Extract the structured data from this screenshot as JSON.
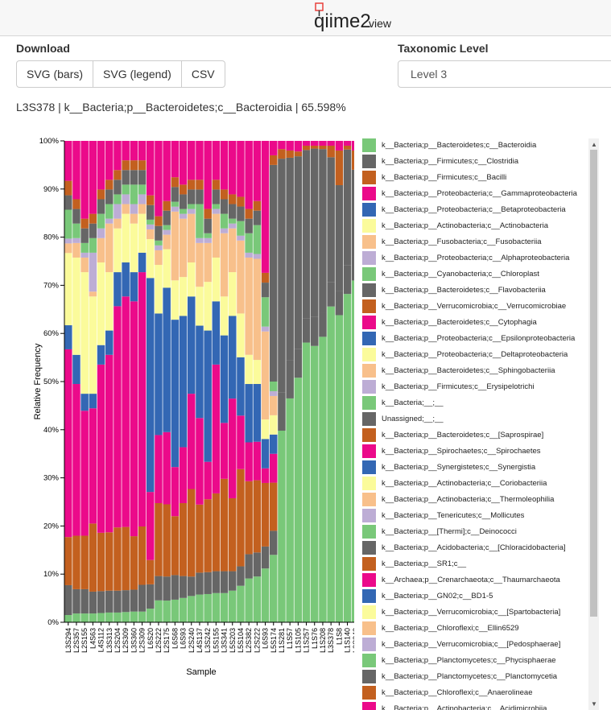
{
  "header": {
    "logo_text": "qiime2view",
    "logo_main": "qiime2",
    "logo_sub": "view"
  },
  "download": {
    "title": "Download",
    "buttons": [
      "SVG (bars)",
      "SVG (legend)",
      "CSV"
    ]
  },
  "taxonomic": {
    "title": "Taxonomic Level",
    "selected": "Level 3"
  },
  "hover_info": "L3S378 | k__Bacteria;p__Bacteroidetes;c__Bacteroidia | 65.598%",
  "colors": {
    "accent_red": "#e8413c"
  },
  "chart_data": {
    "type": "bar",
    "stacked": true,
    "orientation": "vertical",
    "xlabel": "Sample",
    "ylabel": "Relative Frequency",
    "ylim": [
      0,
      100
    ],
    "yticks": [
      "0%",
      "10%",
      "20%",
      "30%",
      "40%",
      "50%",
      "60%",
      "70%",
      "80%",
      "90%",
      "100%"
    ],
    "categories": [
      "L3S294",
      "L2S357",
      "L2S155",
      "L4S63",
      "L4S112",
      "L3S313",
      "L2S204",
      "L2S309",
      "L3S360",
      "L2S309",
      "L6S20",
      "L2S222",
      "L2S175",
      "L6S68",
      "L6S93",
      "L2S240",
      "L4S137",
      "L3S242",
      "L5S155",
      "L3S341",
      "L5S203",
      "L5S104",
      "L2S382",
      "L2S222",
      "L6S93",
      "L5S174",
      "L1S281",
      "L1S57",
      "L1S105",
      "L1S257",
      "L1S76",
      "L1S208",
      "L3S378",
      "L1S8",
      "L1S140",
      "L3S242"
    ],
    "series": [
      {
        "name": "k__Bacteria;p__Bacteroidetes;c__Bacteroidia",
        "color": "#79c879",
        "values": [
          1.5,
          1.8,
          1.8,
          1.8,
          1.9,
          2.0,
          2.0,
          2.1,
          2.2,
          2.2,
          2.8,
          4.5,
          4.5,
          4.6,
          5.0,
          5.4,
          5.7,
          5.8,
          6.0,
          6.0,
          6.5,
          7.5,
          9.0,
          9.5,
          11.0,
          14.0,
          39.8,
          46.5,
          50.8,
          58.1,
          57.4,
          59.3,
          65.6,
          63.8,
          68.2,
          71.0
        ]
      },
      {
        "name": "k__Bacteria;p__Firmicutes;c__Clostridia",
        "color": "#666666",
        "values": [
          6.2,
          5.0,
          5.0,
          4.5,
          4.5,
          4.5,
          4.5,
          4.5,
          4.5,
          5.5,
          5.0,
          5.0,
          5.0,
          5.0,
          4.5,
          4.0,
          4.5,
          4.5,
          4.5,
          4.5,
          4.0,
          4.0,
          5.0,
          5.0,
          4.5,
          5.0,
          8.0,
          8.0,
          6.0,
          5.0,
          6.0,
          5.0,
          5.0,
          5.0,
          6.0,
          5.0
        ]
      },
      {
        "name": "k__Bacteria;p__Firmicutes;c__Bacilli",
        "color": "#c3601f",
        "values": [
          10.0,
          11.0,
          11.0,
          14.0,
          12.0,
          12.0,
          13.0,
          13.0,
          11.0,
          12.0,
          5.0,
          15.0,
          15.0,
          12.0,
          15.0,
          18.0,
          14.0,
          15.0,
          16.0,
          19.0,
          15.0,
          20.0,
          15.0,
          15.0,
          13.0,
          10.0,
          0,
          0,
          0,
          0,
          0,
          0,
          0,
          0,
          0,
          0
        ]
      },
      {
        "name": "k__Bacteria;p__Proteobacteria;c__Gammaproteobacteria",
        "color": "#eb0a8a",
        "values": [
          39.0,
          31.2,
          25.7,
          23.7,
          34.6,
          36.5,
          45.5,
          47.4,
          48.3,
          52.3,
          14.0,
          14.0,
          15.0,
          10.0,
          11.5,
          19.6,
          17.8,
          7.7,
          26.5,
          11.5,
          20.5,
          11.0,
          8.0,
          8.0,
          3.0,
          6.0,
          0,
          0,
          0,
          0,
          0,
          0,
          0,
          0,
          0,
          0
        ]
      },
      {
        "name": "k__Bacteria;p__Proteobacteria;c__Betaproteobacteria",
        "color": "#3367b4",
        "values": [
          5.0,
          6.0,
          3.5,
          3.0,
          4.0,
          5.0,
          7.0,
          7.0,
          6.0,
          4.0,
          44.0,
          25.0,
          30.0,
          30.0,
          27.0,
          20.0,
          19.0,
          27.0,
          13.0,
          18.0,
          17.0,
          12.0,
          12.0,
          12.0,
          6.0,
          4.0,
          0,
          0,
          0,
          0,
          0,
          0,
          0,
          0,
          0,
          0
        ]
      },
      {
        "name": "k__Bacteria;p__Actinobacteria;c__Actinobacteria",
        "color": "#fbfb9b",
        "values": [
          15.0,
          20.0,
          25.0,
          20.0,
          17.0,
          12.0,
          9.0,
          10.0,
          10.0,
          8.0,
          8.0,
          10.0,
          8.0,
          8.0,
          8.0,
          7.0,
          8.0,
          10.0,
          9.0,
          8.0,
          9.0,
          9.0,
          6.0,
          5.0,
          4.0,
          4.0,
          0,
          0,
          0,
          0,
          0,
          0,
          0,
          0,
          0,
          0
        ]
      },
      {
        "name": "k__Bacteria;p__Fusobacteria;c__Fusobacteriia",
        "color": "#f8c08b",
        "values": [
          2.0,
          3.0,
          3.0,
          1.0,
          5.0,
          10.0,
          2.0,
          2.0,
          2.0,
          2.0,
          2.0,
          3.0,
          3.0,
          14.0,
          12.0,
          10.0,
          9.0,
          8.0,
          9.0,
          13.0,
          9.0,
          15.0,
          20.0,
          21.0,
          18.0,
          4.0,
          0,
          0,
          0,
          0,
          0,
          0,
          0,
          0,
          0,
          0
        ]
      },
      {
        "name": "k__Bacteria;p__Proteobacteria;c__Alphaproteobacteria",
        "color": "#bdadd5",
        "values": [
          1.0,
          1.0,
          1.0,
          8.0,
          2.0,
          1.0,
          3.0,
          2.0,
          2.0,
          2.0,
          1.0,
          1.0,
          1.0,
          1.0,
          1.0,
          1.0,
          1.0,
          1.0,
          1.0,
          1.0,
          1.0,
          1.0,
          1.0,
          1.0,
          1.0,
          1.0,
          0,
          0,
          0,
          0,
          0,
          0,
          0,
          0,
          0,
          0
        ]
      },
      {
        "name": "k__Bacteria;p__Cyanobacteria;c__Chloroplast",
        "color": "#79c879",
        "values": [
          6.0,
          3.0,
          2.0,
          3.0,
          3.0,
          3.0,
          2.0,
          2.0,
          4.0,
          2.0,
          1.0,
          1.0,
          1.0,
          1.0,
          1.0,
          1.0,
          7.0,
          1.0,
          1.0,
          3.0,
          1.0,
          3.0,
          4.0,
          6.0,
          6.0,
          2.0,
          0,
          0,
          0,
          0,
          0,
          0,
          0,
          0,
          0,
          0
        ]
      },
      {
        "name": "k__Bacteria;p__Bacteroidetes;c__Flavobacteriia",
        "color": "#666666",
        "values": [
          3.0,
          3.0,
          3.0,
          3.0,
          3.0,
          3.0,
          3.0,
          3.0,
          3.0,
          3.0,
          3.0,
          3.0,
          3.0,
          3.0,
          3.0,
          3.0,
          3.0,
          3.0,
          3.0,
          3.0,
          3.0,
          3.0,
          3.0,
          3.0,
          3.0,
          45.0,
          48.5,
          42.0,
          40.0,
          35.0,
          35.0,
          34.0,
          26.0,
          22.0,
          24.0,
          18.0
        ]
      },
      {
        "name": "k__Bacteria;p__Verrucomicrobia;c__Verrucomicrobiae",
        "color": "#c3601f",
        "values": [
          3.0,
          2.0,
          2.0,
          2.0,
          2.0,
          2.0,
          2.0,
          2.0,
          2.0,
          2.0,
          2.0,
          2.0,
          2.0,
          2.0,
          2.0,
          2.0,
          2.0,
          2.0,
          2.0,
          2.0,
          2.0,
          2.0,
          2.0,
          2.0,
          2.0,
          2.0,
          2.0,
          1.5,
          1.0,
          0.9,
          0.6,
          0.7,
          2.4,
          7.2,
          0.8,
          4.0
        ]
      },
      {
        "name": "k__Bacteria;p__Bacteroidetes;c__Cytophagia",
        "color": "#eb0a8a",
        "values": [
          8.3,
          12.0,
          16.0,
          15.0,
          10.0,
          8.0,
          6.0,
          4.0,
          4.0,
          4.0,
          11.2,
          15.5,
          12.5,
          7.4,
          9.0,
          8.0,
          8.0,
          14.0,
          8.0,
          10.0,
          11.0,
          11.5,
          14.0,
          12.5,
          27.0,
          3.0,
          1.7,
          2.0,
          2.2,
          1.0,
          1.0,
          1.0,
          1.0,
          2.0,
          1.0,
          2.0
        ]
      }
    ]
  },
  "legend": {
    "items": [
      {
        "label": "k__Bacteria;p__Bacteroidetes;c__Bacteroidia",
        "color": "#79c879"
      },
      {
        "label": "k__Bacteria;p__Firmicutes;c__Clostridia",
        "color": "#666666"
      },
      {
        "label": "k__Bacteria;p__Firmicutes;c__Bacilli",
        "color": "#c3601f"
      },
      {
        "label": "k__Bacteria;p__Proteobacteria;c__Gammaproteobacteria",
        "color": "#eb0a8a"
      },
      {
        "label": "k__Bacteria;p__Proteobacteria;c__Betaproteobacteria",
        "color": "#3367b4"
      },
      {
        "label": "k__Bacteria;p__Actinobacteria;c__Actinobacteria",
        "color": "#fbfb9b"
      },
      {
        "label": "k__Bacteria;p__Fusobacteria;c__Fusobacteriia",
        "color": "#f8c08b"
      },
      {
        "label": "k__Bacteria;p__Proteobacteria;c__Alphaproteobacteria",
        "color": "#bdadd5"
      },
      {
        "label": "k__Bacteria;p__Cyanobacteria;c__Chloroplast",
        "color": "#79c879"
      },
      {
        "label": "k__Bacteria;p__Bacteroidetes;c__Flavobacteriia",
        "color": "#666666"
      },
      {
        "label": "k__Bacteria;p__Verrucomicrobia;c__Verrucomicrobiae",
        "color": "#c3601f"
      },
      {
        "label": "k__Bacteria;p__Bacteroidetes;c__Cytophagia",
        "color": "#eb0a8a"
      },
      {
        "label": "k__Bacteria;p__Proteobacteria;c__Epsilonproteobacteria",
        "color": "#3367b4"
      },
      {
        "label": "k__Bacteria;p__Proteobacteria;c__Deltaproteobacteria",
        "color": "#fbfb9b"
      },
      {
        "label": "k__Bacteria;p__Bacteroidetes;c__Sphingobacteriia",
        "color": "#f8c08b"
      },
      {
        "label": "k__Bacteria;p__Firmicutes;c__Erysipelotrichi",
        "color": "#bdadd5"
      },
      {
        "label": "k__Bacteria;__;__",
        "color": "#79c879"
      },
      {
        "label": "Unassigned;__;__",
        "color": "#666666"
      },
      {
        "label": "k__Bacteria;p__Bacteroidetes;c__[Saprospirae]",
        "color": "#c3601f"
      },
      {
        "label": "k__Bacteria;p__Spirochaetes;c__Spirochaetes",
        "color": "#eb0a8a"
      },
      {
        "label": "k__Bacteria;p__Synergistetes;c__Synergistia",
        "color": "#3367b4"
      },
      {
        "label": "k__Bacteria;p__Actinobacteria;c__Coriobacteriia",
        "color": "#fbfb9b"
      },
      {
        "label": "k__Bacteria;p__Actinobacteria;c__Thermoleophilia",
        "color": "#f8c08b"
      },
      {
        "label": "k__Bacteria;p__Tenericutes;c__Mollicutes",
        "color": "#bdadd5"
      },
      {
        "label": "k__Bacteria;p__[Thermi];c__Deinococci",
        "color": "#79c879"
      },
      {
        "label": "k__Bacteria;p__Acidobacteria;c__[Chloracidobacteria]",
        "color": "#666666"
      },
      {
        "label": "k__Bacteria;p__SR1;c__",
        "color": "#c3601f"
      },
      {
        "label": "k__Archaea;p__Crenarchaeota;c__Thaumarchaeota",
        "color": "#eb0a8a"
      },
      {
        "label": "k__Bacteria;p__GN02;c__BD1-5",
        "color": "#3367b4"
      },
      {
        "label": "k__Bacteria;p__Verrucomicrobia;c__[Spartobacteria]",
        "color": "#fbfb9b"
      },
      {
        "label": "k__Bacteria;p__Chloroflexi;c__Ellin6529",
        "color": "#f8c08b"
      },
      {
        "label": "k__Bacteria;p__Verrucomicrobia;c__[Pedosphaerae]",
        "color": "#bdadd5"
      },
      {
        "label": "k__Bacteria;p__Planctomycetes;c__Phycisphaerae",
        "color": "#79c879"
      },
      {
        "label": "k__Bacteria;p__Planctomycetes;c__Planctomycetia",
        "color": "#666666"
      },
      {
        "label": "k__Bacteria;p__Chloroflexi;c__Anaerolineae",
        "color": "#c3601f"
      },
      {
        "label": "k__Bacteria;p__Actinobacteria;c__Acidimicrobiia",
        "color": "#eb0a8a"
      }
    ]
  }
}
